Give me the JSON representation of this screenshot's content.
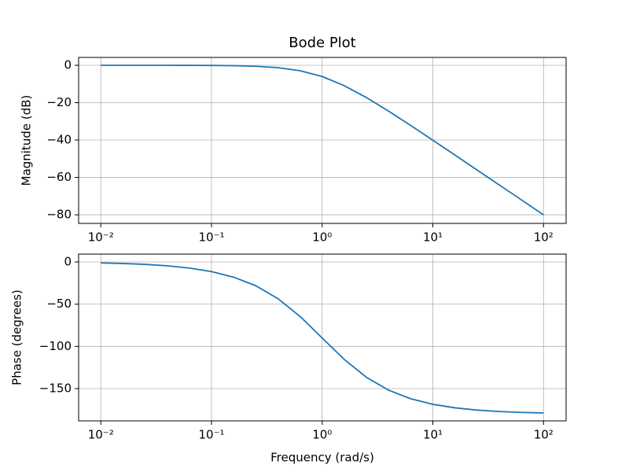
{
  "chart_data": [
    {
      "type": "line",
      "title": "Bode Plot",
      "y_label": "Magnitude (dB)",
      "x_scale": "log",
      "grid": true,
      "x": [
        0.01,
        0.01585,
        0.02512,
        0.03981,
        0.0631,
        0.1,
        0.1585,
        0.2512,
        0.3981,
        0.631,
        1,
        1.585,
        2.512,
        3.981,
        6.31,
        10,
        15.85,
        25.12,
        39.81,
        63.1,
        100
      ],
      "series": [
        {
          "color": "#1f77b4",
          "values": [
            0.0,
            -0.0022,
            -0.0055,
            -0.0138,
            -0.0345,
            -0.0864,
            -0.2155,
            -0.531,
            -1.278,
            -2.91,
            -6.021,
            -10.91,
            -17.28,
            -24.53,
            -32.22,
            -40.09,
            -48.03,
            -56.01,
            -64.01,
            -72.0,
            -80.0
          ]
        }
      ],
      "xlim": [
        0.0063,
        160
      ],
      "ylim": [
        -84.6,
        4.2
      ],
      "xticks": [
        {
          "value": 0.01,
          "label": "10⁻²"
        },
        {
          "value": 0.1,
          "label": "10⁻¹"
        },
        {
          "value": 1,
          "label": "10⁰"
        },
        {
          "value": 10,
          "label": "10¹"
        },
        {
          "value": 100,
          "label": "10²"
        }
      ],
      "yticks": [
        {
          "value": -80,
          "label": "−80"
        },
        {
          "value": -60,
          "label": "−60"
        },
        {
          "value": -40,
          "label": "−40"
        },
        {
          "value": -20,
          "label": "−20"
        },
        0
      ]
    },
    {
      "type": "line",
      "x_label": "Frequency (rad/s)",
      "y_label": "Phase (degrees)",
      "x_scale": "log",
      "grid": true,
      "x": [
        0.01,
        0.01585,
        0.02512,
        0.03981,
        0.0631,
        0.1,
        0.1585,
        0.2512,
        0.3981,
        0.631,
        1,
        1.585,
        2.512,
        3.981,
        6.31,
        10,
        15.85,
        25.12,
        39.81,
        63.1,
        100
      ],
      "series": [
        {
          "color": "#1f77b4",
          "values": [
            -1.15,
            -1.82,
            -2.88,
            -4.56,
            -7.22,
            -11.42,
            -18.01,
            -28.2,
            -43.4,
            -64.5,
            -90,
            -115.5,
            -136.6,
            -151.8,
            -161.99,
            -168.58,
            -172.78,
            -175.44,
            -177.12,
            -178.18,
            -178.85
          ]
        }
      ],
      "xlim": [
        0.0063,
        160
      ],
      "ylim": [
        -188.2,
        9.3
      ],
      "xticks": [
        {
          "value": 0.01,
          "label": "10⁻²"
        },
        {
          "value": 0.1,
          "label": "10⁻¹"
        },
        {
          "value": 1,
          "label": "10⁰"
        },
        {
          "value": 10,
          "label": "10¹"
        },
        {
          "value": 100,
          "label": "10²"
        }
      ],
      "yticks": [
        {
          "value": -150,
          "label": "−150"
        },
        {
          "value": -100,
          "label": "−100"
        },
        {
          "value": -50,
          "label": "−50"
        },
        0
      ]
    }
  ]
}
